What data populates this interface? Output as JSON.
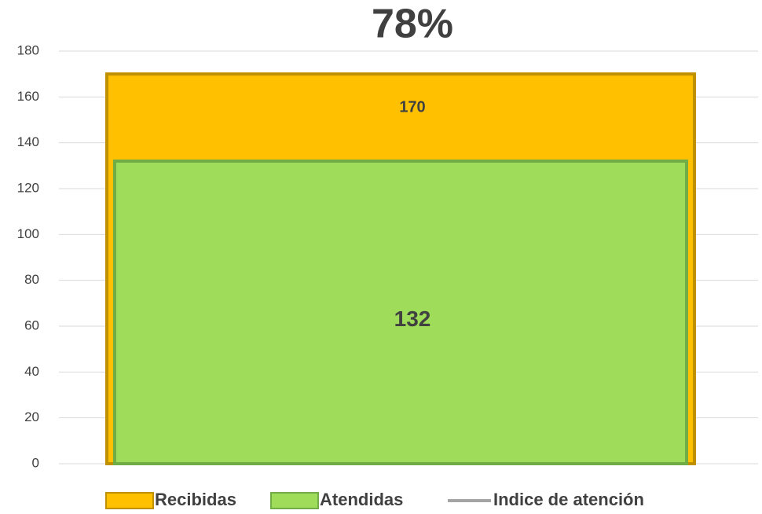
{
  "chart_data": {
    "type": "bar",
    "categories": [
      null
    ],
    "series": [
      {
        "name": "Recibidas",
        "color": "#ffc000",
        "values": [
          170
        ]
      },
      {
        "name": "Atendidas",
        "color": "#9fdc5a",
        "values": [
          132
        ]
      },
      {
        "name": "Indice de atención",
        "color": "#a5a5a5",
        "type": "line",
        "values": [
          78
        ],
        "value_labels": [
          "78%"
        ]
      }
    ],
    "ylim": [
      0,
      180
    ],
    "yticks": [
      0,
      20,
      40,
      60,
      80,
      100,
      120,
      140,
      160,
      180
    ],
    "grid": true,
    "legend": "bottom"
  }
}
